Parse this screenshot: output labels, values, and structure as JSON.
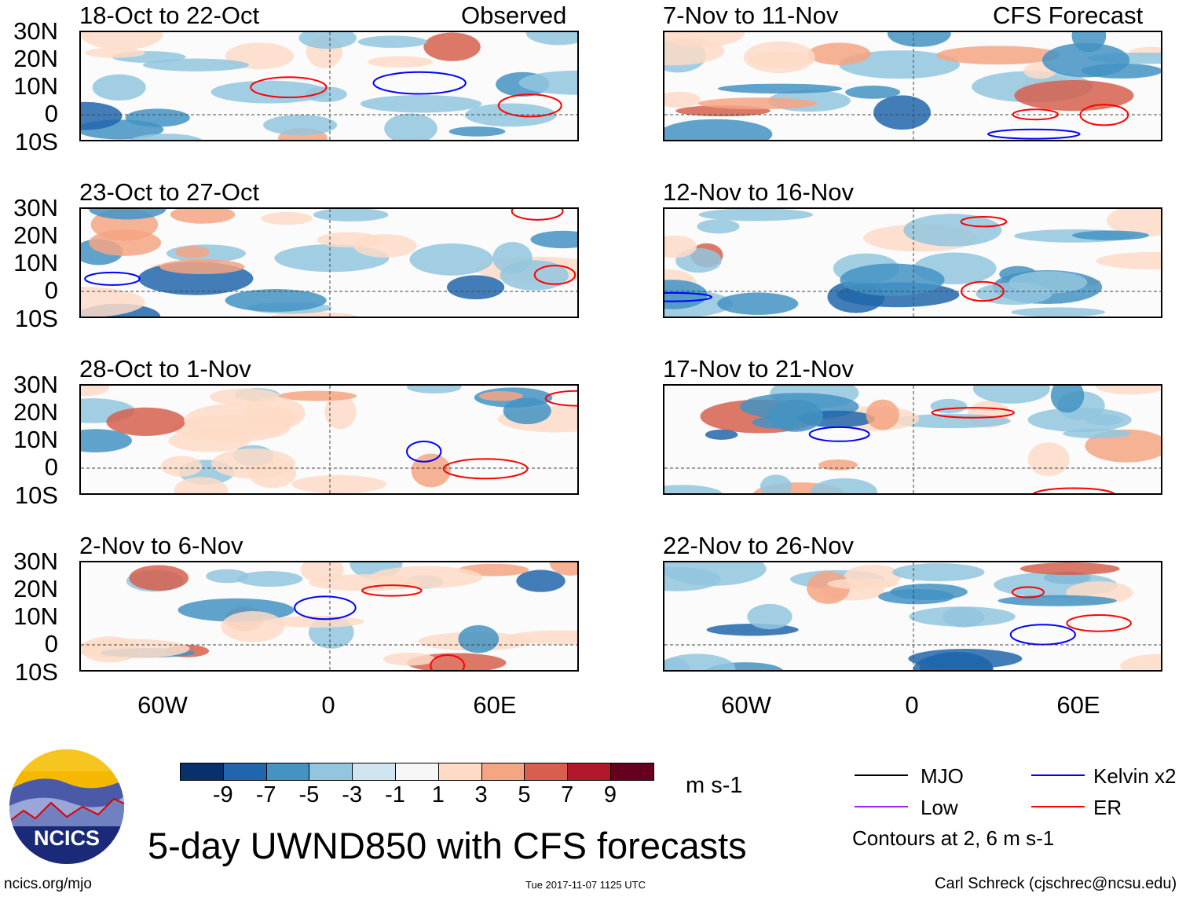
{
  "header": {
    "left_label": "Observed",
    "right_label": "CFS Forecast"
  },
  "panels": {
    "left": [
      {
        "title": "18-Oct to 22-Oct"
      },
      {
        "title": "23-Oct to 27-Oct"
      },
      {
        "title": "28-Oct to 1-Nov"
      },
      {
        "title": "2-Nov to 6-Nov"
      }
    ],
    "right": [
      {
        "title": "7-Nov to 11-Nov"
      },
      {
        "title": "12-Nov to 16-Nov"
      },
      {
        "title": "17-Nov to 21-Nov"
      },
      {
        "title": "22-Nov to 26-Nov"
      }
    ]
  },
  "axes": {
    "lat_labels": [
      "30N",
      "20N",
      "10N",
      "0",
      "10S"
    ],
    "lon_labels": [
      "60W",
      "0",
      "60E"
    ]
  },
  "colorbar": {
    "colors": [
      "#08306b",
      "#2166ac",
      "#4393c3",
      "#92c5de",
      "#d1e5f0",
      "#f7f7f7",
      "#fddbc7",
      "#f4a582",
      "#d6604d",
      "#b2182b",
      "#67001f"
    ],
    "labels": [
      "-9",
      "-7",
      "-5",
      "-3",
      "-1",
      "1",
      "3",
      "5",
      "7",
      "9"
    ],
    "units": "m s-1"
  },
  "legend": {
    "items": [
      {
        "label": "MJO",
        "color": "#000000"
      },
      {
        "label": "Kelvin x2",
        "color": "#0000ff"
      },
      {
        "label": "Low",
        "color": "#a020f0"
      },
      {
        "label": "ER",
        "color": "#ff0000"
      }
    ],
    "note": "Contours at 2, 6 m s-1"
  },
  "footer": {
    "title": "5-day UWND850 with CFS forecasts",
    "logo_text": "NCICS",
    "url": "ncics.org/mjo",
    "timestamp": "Tue 2017-11-07 1125 UTC",
    "credit": "Carl Schreck (cjschrec@ncsu.edu)"
  }
}
